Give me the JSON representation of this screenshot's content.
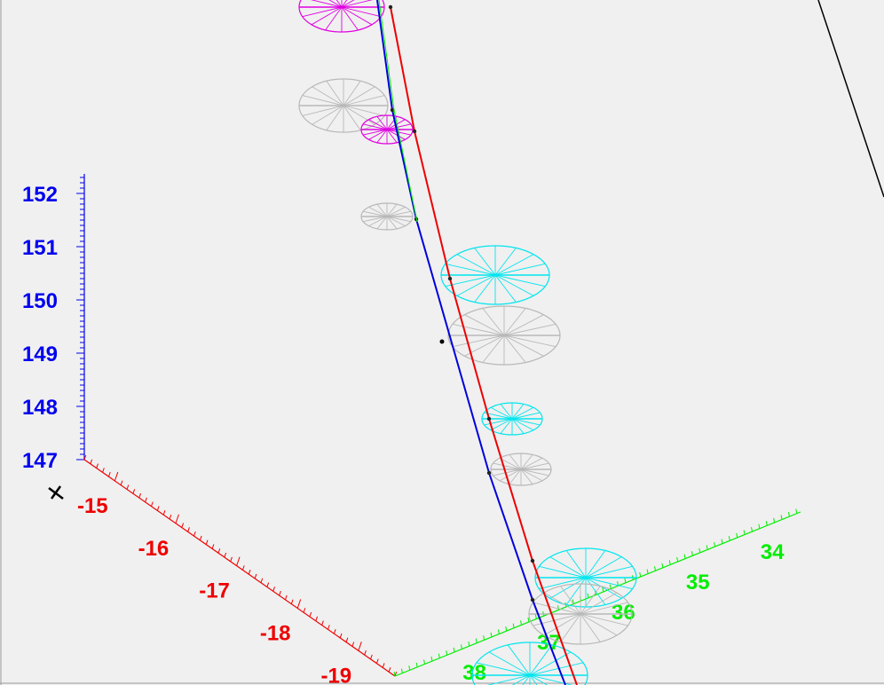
{
  "chart_data": {
    "type": "3d-track-plot",
    "title": "",
    "colors": {
      "background": "#f0f0f0",
      "axis_z": "#0000ee",
      "axis_x": "#ee0000",
      "axis_y": "#00ee00",
      "track_blue": "#0000dd",
      "track_red": "#ee0000",
      "ellipse_cyan": "#00e5ee",
      "ellipse_magenta": "#e000e0",
      "ellipse_gray": "#b8b8b8",
      "frame": "#000000"
    },
    "axes": {
      "z": {
        "label": "",
        "ticks": [
          152,
          151,
          150,
          149,
          148,
          147
        ]
      },
      "x": {
        "label": "",
        "ticks": [
          -15,
          -16,
          -17,
          -18,
          -19
        ]
      },
      "y": {
        "label": "",
        "ticks": [
          34,
          35,
          36,
          37,
          38
        ]
      }
    },
    "series": [
      {
        "color_key": "track_blue",
        "points_xyz": [
          [
            -14.6,
            38.2,
            153.2
          ],
          [
            -14.9,
            37.6,
            151.3
          ],
          [
            -15.6,
            37.0,
            148.9
          ],
          [
            -16.3,
            36.8,
            147.2
          ],
          [
            -17.1,
            36.6,
            145.9
          ],
          [
            -17.8,
            36.5,
            145.2
          ]
        ]
      },
      {
        "color_key": "track_red",
        "points_xyz": [
          [
            -14.4,
            37.9,
            153.3
          ],
          [
            -14.7,
            37.3,
            151.8
          ],
          [
            -15.2,
            36.9,
            150.1
          ],
          [
            -15.8,
            36.6,
            148.5
          ],
          [
            -16.6,
            36.3,
            146.8
          ],
          [
            -17.6,
            36.1,
            145.4
          ]
        ]
      }
    ],
    "ellipses": [
      {
        "color_key": "ellipse_magenta",
        "center_xyz": [
          -14.5,
          38.5,
          153.4
        ],
        "size": "large"
      },
      {
        "color_key": "ellipse_gray",
        "center_xyz": [
          -14.6,
          38.6,
          152.6
        ],
        "size": "large"
      },
      {
        "color_key": "ellipse_magenta",
        "center_xyz": [
          -14.7,
          38.2,
          152.3
        ],
        "size": "small"
      },
      {
        "color_key": "ellipse_gray",
        "center_xyz": [
          -14.9,
          38.3,
          151.4
        ],
        "size": "small"
      },
      {
        "color_key": "ellipse_cyan",
        "center_xyz": [
          -15.3,
          37.0,
          150.2
        ],
        "size": "large"
      },
      {
        "color_key": "ellipse_gray",
        "center_xyz": [
          -15.6,
          36.9,
          149.2
        ],
        "size": "large"
      },
      {
        "color_key": "ellipse_cyan",
        "center_xyz": [
          -16.0,
          36.6,
          147.6
        ],
        "size": "small"
      },
      {
        "color_key": "ellipse_gray",
        "center_xyz": [
          -16.4,
          36.6,
          146.8
        ],
        "size": "small"
      },
      {
        "color_key": "ellipse_cyan",
        "center_xyz": [
          -17.0,
          36.0,
          146.0
        ],
        "size": "large"
      },
      {
        "color_key": "ellipse_gray",
        "center_xyz": [
          -17.3,
          36.1,
          145.7
        ],
        "size": "large"
      },
      {
        "color_key": "ellipse_cyan",
        "center_xyz": [
          -18.0,
          37.2,
          144.8
        ],
        "size": "large"
      }
    ]
  }
}
